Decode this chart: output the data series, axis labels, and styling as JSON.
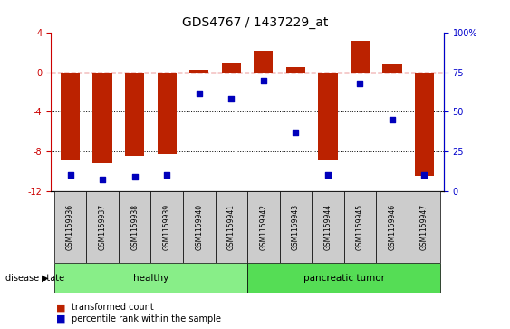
{
  "title": "GDS4767 / 1437229_at",
  "samples": [
    "GSM1159936",
    "GSM1159937",
    "GSM1159938",
    "GSM1159939",
    "GSM1159940",
    "GSM1159941",
    "GSM1159942",
    "GSM1159943",
    "GSM1159944",
    "GSM1159945",
    "GSM1159946",
    "GSM1159947"
  ],
  "transformed_count": [
    -8.8,
    -9.2,
    -8.5,
    -8.3,
    0.3,
    1.0,
    2.2,
    0.5,
    -8.9,
    3.2,
    0.8,
    -10.5
  ],
  "percentile_rank": [
    10,
    7,
    9,
    10,
    62,
    58,
    70,
    37,
    10,
    68,
    45,
    10
  ],
  "healthy_indices": [
    0,
    1,
    2,
    3,
    4,
    5
  ],
  "tumor_indices": [
    6,
    7,
    8,
    9,
    10,
    11
  ],
  "ylim_left": [
    -12,
    4
  ],
  "ylim_right": [
    0,
    100
  ],
  "bar_color": "#BB2200",
  "dot_color": "#0000BB",
  "hline_color": "#CC0000",
  "grid_color": "black",
  "sample_box_color": "#CCCCCC",
  "healthy_color": "#88EE88",
  "tumor_color": "#55DD55",
  "right_axis_color": "#0000CC",
  "left_axis_color": "#CC0000",
  "legend_bar_color": "#BB2200",
  "legend_dot_color": "#0000BB",
  "yticks_left": [
    -12,
    -8,
    -4,
    0,
    4
  ],
  "yticks_right": [
    0,
    25,
    50,
    75,
    100
  ],
  "ytick_labels_right": [
    "0",
    "25",
    "50",
    "75",
    "100%"
  ]
}
